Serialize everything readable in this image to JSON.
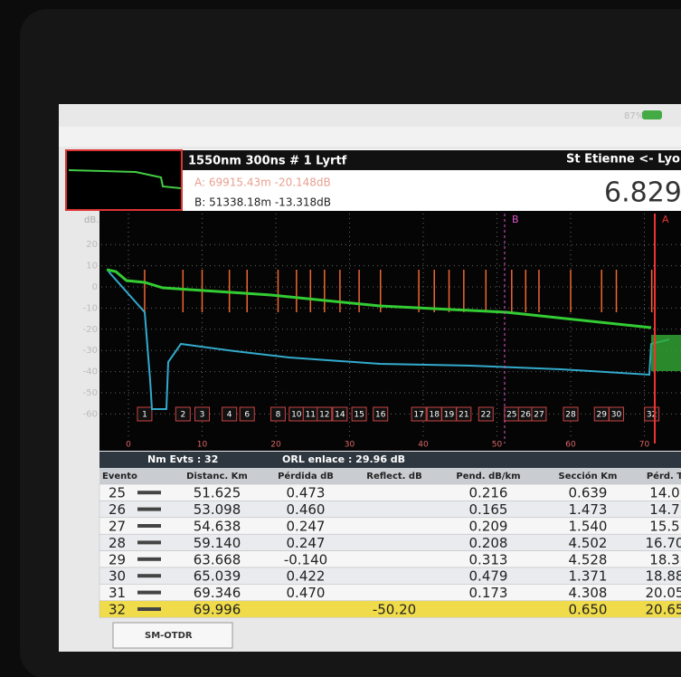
{
  "status": {
    "battery": "87%"
  },
  "header": {
    "trace": "1550nm 300ns # 1 Lyrtf",
    "cursor_a": "A: 69915.43m -20.148dB",
    "cursor_b": "B: 51338.18m -13.318dB",
    "route": "St Etienne <- Lyon",
    "value": "6.829"
  },
  "plot": {
    "y_unit": "dB.",
    "yticks": [
      20,
      10,
      0,
      -10,
      -20,
      -30,
      -40,
      -50,
      -60
    ],
    "xticks": [
      0,
      10,
      20,
      30,
      40,
      50,
      60,
      70
    ],
    "marker_a": "A",
    "marker_b": "B",
    "events": [
      {
        "label": "1",
        "km": 2.2
      },
      {
        "label": "2",
        "km": 7.4
      },
      {
        "label": "3",
        "km": 10
      },
      {
        "label": "4",
        "km": 13.7
      },
      {
        "label": "6",
        "km": 16.1
      },
      {
        "label": "8",
        "km": 20.3
      },
      {
        "label": "10",
        "km": 22.8
      },
      {
        "label": "11",
        "km": 24.7
      },
      {
        "label": "12",
        "km": 26.6
      },
      {
        "label": "14",
        "km": 28.7
      },
      {
        "label": "15",
        "km": 31.3
      },
      {
        "label": "16",
        "km": 34.2
      },
      {
        "label": "17",
        "km": 39.4
      },
      {
        "label": "18",
        "km": 41.5
      },
      {
        "label": "19",
        "km": 43.5
      },
      {
        "label": "21",
        "km": 45.5
      },
      {
        "label": "22",
        "km": 48.5
      },
      {
        "label": "25",
        "km": 52
      },
      {
        "label": "26",
        "km": 53.9
      },
      {
        "label": "27",
        "km": 55.7
      },
      {
        "label": "28",
        "km": 60
      },
      {
        "label": "29",
        "km": 64.2
      },
      {
        "label": "30",
        "km": 66.2
      },
      {
        "label": "32",
        "km": 71
      }
    ]
  },
  "summary": {
    "events": "Nm Evts : 32",
    "orl": "ORL enlace : 29.96 dB"
  },
  "table": {
    "columns": [
      "Evento",
      "Distanc. Km",
      "Pérdida dB",
      "Reflect. dB",
      "Pend. dB/km",
      "Sección Km",
      "Pérd. T"
    ],
    "rows": [
      [
        "25",
        "51.625",
        "0.473",
        null,
        "0.216",
        "0.639",
        "14.0"
      ],
      [
        "26",
        "53.098",
        "0.460",
        null,
        "0.165",
        "1.473",
        "14.7"
      ],
      [
        "27",
        "54.638",
        "0.247",
        null,
        "0.209",
        "1.540",
        "15.5"
      ],
      [
        "28",
        "59.140",
        "0.247",
        null,
        "0.208",
        "4.502",
        "16.70"
      ],
      [
        "29",
        "63.668",
        "-0.140",
        null,
        "0.313",
        "4.528",
        "18.3"
      ],
      [
        "30",
        "65.039",
        "0.422",
        null,
        "0.479",
        "1.371",
        "18.88"
      ],
      [
        "31",
        "69.346",
        "0.470",
        null,
        "0.173",
        "4.308",
        "20.05"
      ],
      [
        "32",
        "69.996",
        null,
        "-50.20",
        null,
        "0.650",
        "20.65"
      ]
    ]
  },
  "tab": "SM-OTDR"
}
